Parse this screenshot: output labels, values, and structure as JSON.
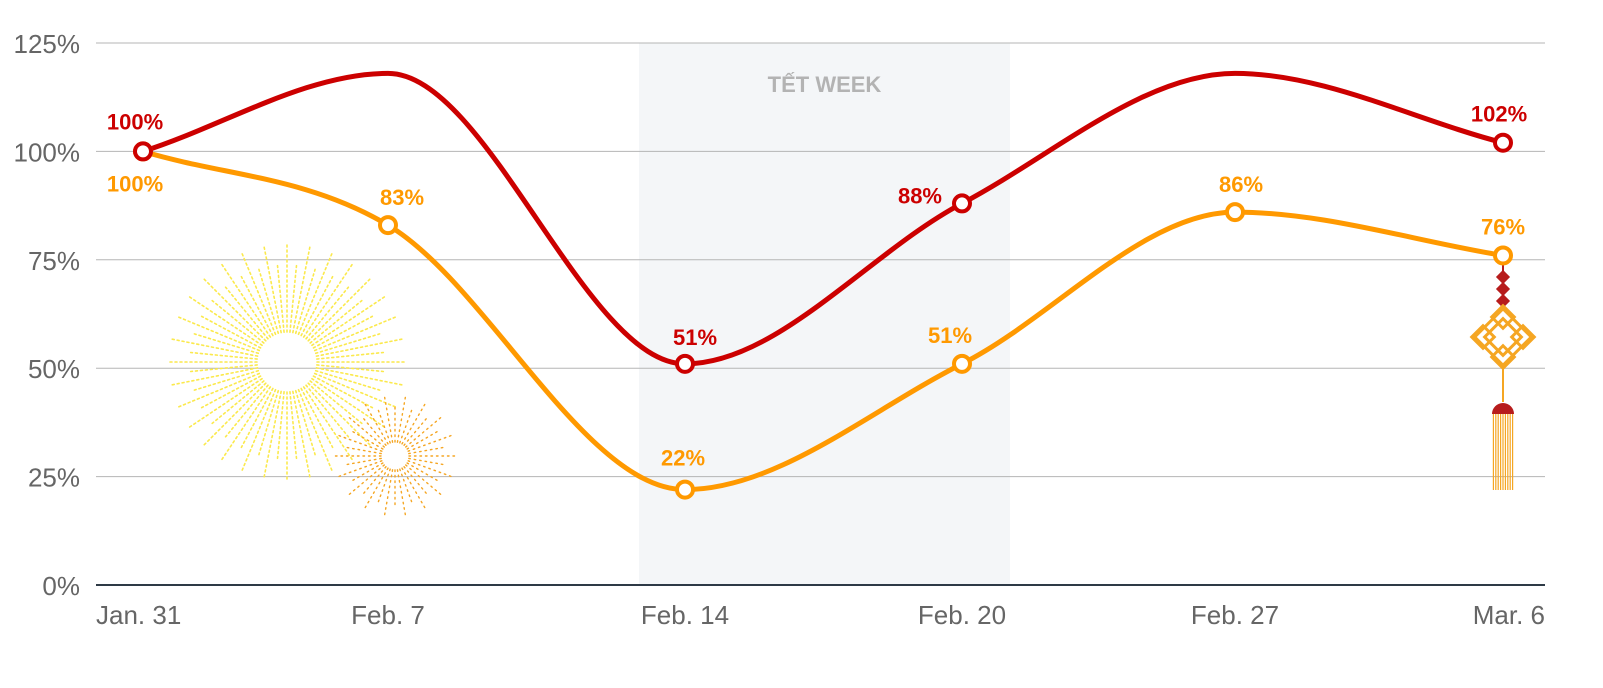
{
  "chart_data": {
    "type": "line",
    "title": "",
    "xlabel": "",
    "ylabel": "",
    "x": [
      "Jan. 31",
      "Feb. 7",
      "Feb. 14",
      "Feb. 20",
      "Feb. 27",
      "Mar. 6"
    ],
    "y_ticks": [
      "0%",
      "25%",
      "50%",
      "75%",
      "100%",
      "125%"
    ],
    "ylim": [
      0,
      125
    ],
    "grid": true,
    "highlight_band": {
      "from": "Feb. 14",
      "to": "Feb. 20",
      "label": "TẾT WEEK"
    },
    "series": [
      {
        "color": "#cc0000",
        "values": [
          100,
          118,
          51,
          88,
          118,
          102
        ],
        "labeled_points": [
          {
            "index": 0,
            "label": "100%"
          },
          {
            "index": 2,
            "label": "51%"
          },
          {
            "index": 3,
            "label": "88%"
          },
          {
            "index": 5,
            "label": "102%"
          }
        ]
      },
      {
        "color": "#ff9900",
        "values": [
          100,
          83,
          22,
          51,
          86,
          76
        ],
        "labeled_points": [
          {
            "index": 0,
            "label": "100%"
          },
          {
            "index": 1,
            "label": "83%"
          },
          {
            "index": 2,
            "label": "22%"
          },
          {
            "index": 3,
            "label": "51%"
          },
          {
            "index": 4,
            "label": "86%"
          },
          {
            "index": 5,
            "label": "76%"
          }
        ]
      }
    ]
  },
  "decorations": {
    "firework_large_color": "#fbe94c",
    "firework_small_color": "#f5a623",
    "knot_color": "#f5a623",
    "knot_accent_color": "#b71c1c"
  }
}
